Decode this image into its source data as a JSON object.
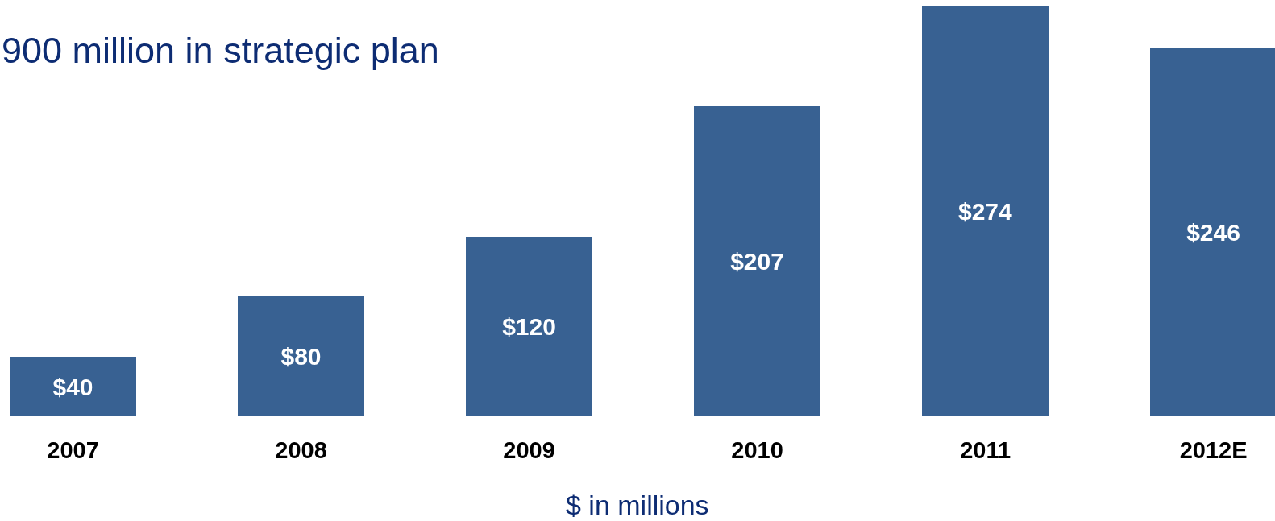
{
  "chart_data": {
    "type": "bar",
    "title": "900 million in strategic plan",
    "xlabel": "$ in millions",
    "categories": [
      "2007",
      "2008",
      "2009",
      "2010",
      "2011",
      "2012E"
    ],
    "values": [
      40,
      80,
      120,
      207,
      274,
      246
    ],
    "value_labels": [
      "$40",
      "$80",
      "$120",
      "$207",
      "$274",
      "$246"
    ],
    "color": "#386192",
    "ylim": [
      0,
      274
    ]
  }
}
